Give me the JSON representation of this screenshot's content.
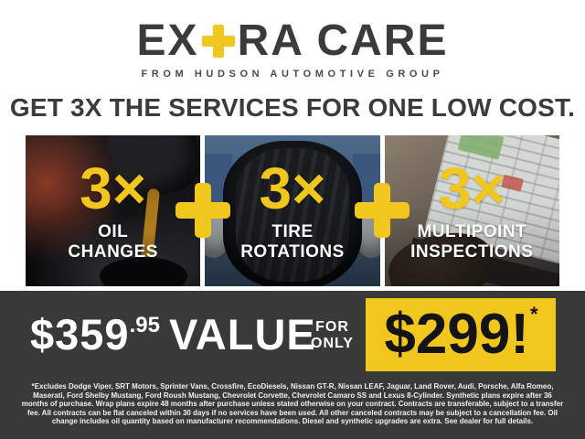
{
  "brand": {
    "logo_part1": "EX",
    "logo_plus_glyph": "+",
    "logo_part2": "RA CARE",
    "tagline": "FROM HUDSON AUTOMOTIVE GROUP"
  },
  "headline": "GET 3X THE SERVICES FOR ONE LOW COST.",
  "services": [
    {
      "multiplier": "3×",
      "label_line1": "OIL",
      "label_line2": "CHANGES",
      "photo": "oil-pour-photo"
    },
    {
      "multiplier": "3×",
      "label_line1": "TIRE",
      "label_line2": "ROTATIONS",
      "photo": "tire-held-by-technician-photo"
    },
    {
      "multiplier": "3×",
      "label_line1": "MULTIPOINT",
      "label_line2": "INSPECTIONS",
      "photo": "laptop-inspection-checklist-photo"
    }
  ],
  "offer": {
    "value_price_dollars": "$359",
    "value_price_cents": ".95",
    "value_label": "VALUE",
    "for_only_line1": "FOR",
    "for_only_line2": "ONLY",
    "sale_price": "$299!",
    "sale_price_asterisk": "*"
  },
  "disclaimer": "*Excludes Dodge Viper, SRT Motors, Sprinter Vans, Crossfire, EcoDiesels, Nissan GT-R, Nissan LEAF, Jaguar, Land Rover, Audi, Porsche, Alfa Romeo, Maserati, Ford Shelby Mustang, Ford Roush Mustang, Chevrolet Corvette, Chevrolet Camaro SS and Lexus 8-Cylinder. Synthetic plans expire after 36 months of purchase. Wrap plans expire 48 months after purchase unless stated otherwise on your contract. Contracts are transferable, subject to a transfer fee. All contracts can be flat canceled within 30 days if no services have been used. All other canceled contracts may be subject to a cancellation fee. Oil change includes oil quantity based on manufacturer recommendations. Diesel and synthetic upgrades are extra. See dealer for full details.",
  "icons": {
    "plus": "plus-icon (CSS cross shape)"
  },
  "colors": {
    "accent_yellow": "#F2C71D",
    "charcoal_text": "#3B3B3B",
    "band_background": "#393939",
    "page_background": "#FFFFFF"
  }
}
